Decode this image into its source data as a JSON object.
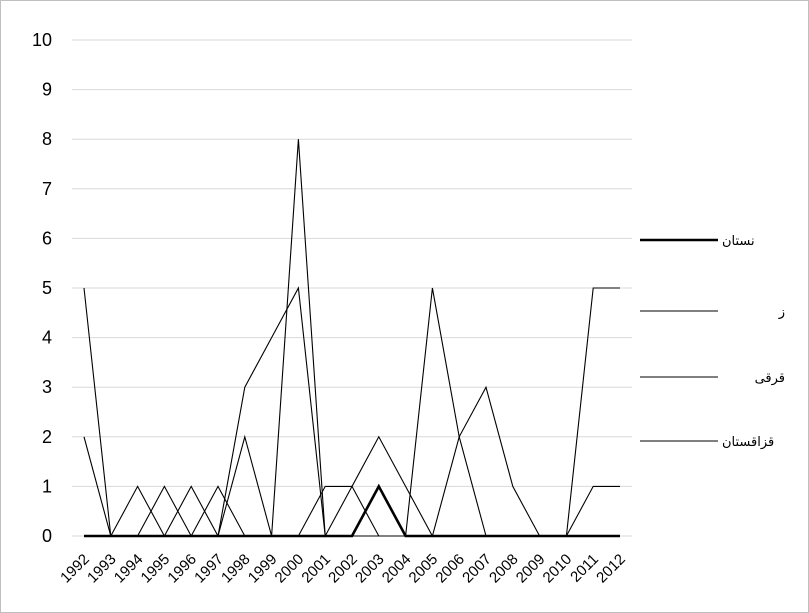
{
  "chart_data": {
    "type": "line",
    "title": "",
    "xlabel": "",
    "ylabel": "",
    "ylim": [
      0,
      10
    ],
    "yticks": [
      "0",
      "1",
      "2",
      "3",
      "4",
      "5",
      "6",
      "7",
      "8",
      "9",
      "10"
    ],
    "grid": true,
    "legend_position": "right",
    "categories": [
      "1992",
      "1993",
      "1994",
      "1995",
      "1996",
      "1997",
      "1998",
      "1999",
      "2000",
      "2001",
      "2002",
      "2003",
      "2004",
      "2005",
      "2006",
      "2007",
      "2008",
      "2009",
      "2010",
      "2011",
      "2012"
    ],
    "series": [
      {
        "name": "نستان",
        "stroke_color": "#000000",
        "emphasis": "bold",
        "values": [
          0,
          0,
          0,
          0,
          0,
          0,
          0,
          0,
          0,
          0,
          0,
          1,
          0,
          0,
          0,
          0,
          0,
          0,
          0,
          0,
          0
        ]
      },
      {
        "name": "ز",
        "stroke_color": "#000000",
        "emphasis": "thin",
        "values": [
          5,
          0,
          0,
          0,
          0,
          0,
          3,
          4,
          5,
          0,
          0,
          0,
          0,
          5,
          2,
          0,
          0,
          0,
          0,
          5,
          5
        ]
      },
      {
        "name": "قرقی",
        "stroke_color": "#000000",
        "emphasis": "thin",
        "values": [
          2,
          0,
          1,
          0,
          1,
          0,
          2,
          0,
          8,
          0,
          1,
          0,
          0,
          0,
          0,
          0,
          0,
          0,
          0,
          0,
          0
        ]
      },
      {
        "name": "قزاقستان",
        "stroke_color": "#000000",
        "emphasis": "thin",
        "values": [
          0,
          0,
          0,
          1,
          0,
          1,
          0,
          0,
          0,
          1,
          1,
          2,
          1,
          0,
          2,
          3,
          1,
          0,
          0,
          1,
          1
        ]
      }
    ]
  },
  "colors": {
    "gridline": "#d9d9d9",
    "border": "#bfbfbf",
    "line": "#000000"
  }
}
